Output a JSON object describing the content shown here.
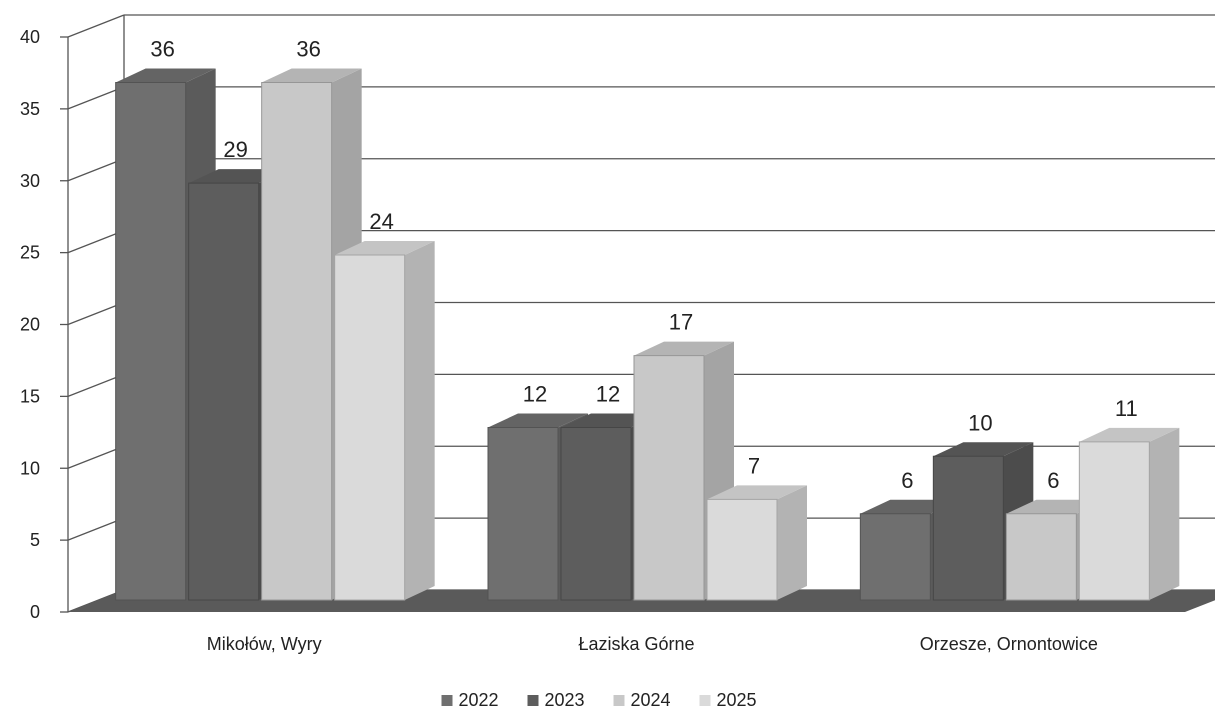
{
  "chart_data": {
    "type": "bar",
    "categories": [
      "Mikołów, Wyry",
      "Łaziska Górne",
      "Orzesze, Ornontowice"
    ],
    "series": [
      {
        "name": "2022",
        "values": [
          36,
          12,
          6
        ]
      },
      {
        "name": "2023",
        "values": [
          29,
          12,
          10
        ]
      },
      {
        "name": "2024",
        "values": [
          36,
          17,
          6
        ]
      },
      {
        "name": "2025",
        "values": [
          24,
          7,
          11
        ]
      }
    ],
    "ylim": [
      0,
      40
    ],
    "yticks": [
      "0",
      "5",
      "10",
      "15",
      "20",
      "25",
      "30",
      "35",
      "40"
    ],
    "grid": true,
    "legend_position": "bottom",
    "style": "3d",
    "colors": {
      "2022": "#6f6f6f",
      "2023": "#5d5d5d",
      "2024": "#c8c8c8",
      "2025": "#dadada",
      "floor": "#5a5a5a",
      "grid": "#555555"
    }
  }
}
